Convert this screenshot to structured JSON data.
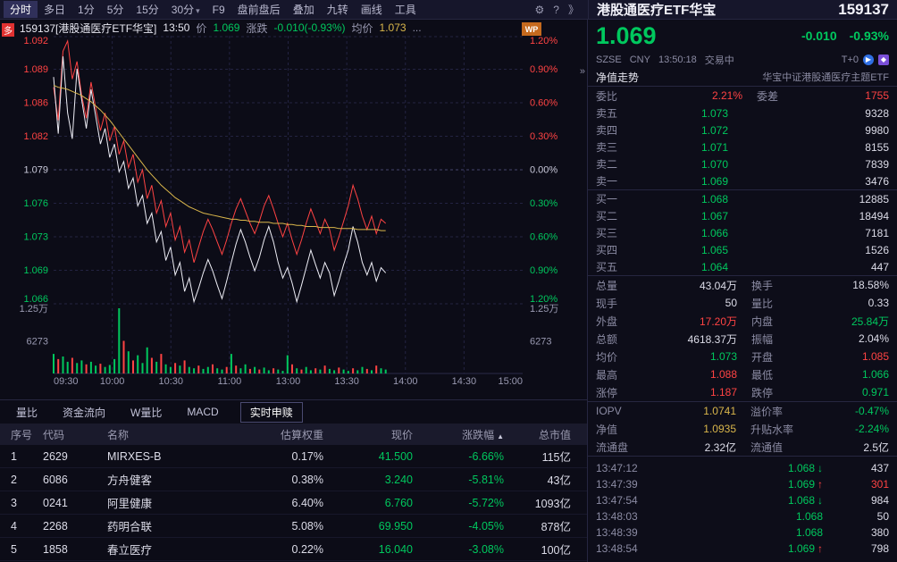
{
  "colors": {
    "red": "#ff4343",
    "green": "#00c85e",
    "yellow": "#d9b64b",
    "white": "#dcdce8",
    "gray": "#8b8ba3"
  },
  "toolbar": {
    "items": [
      {
        "label": "分时",
        "name": "minute",
        "active": true
      },
      {
        "label": "多日",
        "name": "multi-day"
      },
      {
        "label": "1分",
        "name": "1min"
      },
      {
        "label": "5分",
        "name": "5min"
      },
      {
        "label": "15分",
        "name": "15min"
      },
      {
        "label": "30分",
        "name": "30min",
        "caret": true
      },
      {
        "label": "F9",
        "name": "f9"
      },
      {
        "label": "盘前盘后",
        "name": "pre-post-market"
      },
      {
        "label": "叠加",
        "name": "overlay"
      },
      {
        "label": "九转",
        "name": "nine-turn"
      },
      {
        "label": "画线",
        "name": "draw-line"
      },
      {
        "label": "工具",
        "name": "tools"
      }
    ],
    "gear": "⚙",
    "help": "?",
    "more": "》",
    "duo_badge": "多"
  },
  "chart": {
    "header": {
      "code_name": "159137[港股通医疗ETF华宝]",
      "time": "13:50",
      "price_label": "价",
      "price": "1.069",
      "change_label": "涨跌",
      "change": "-0.010(-0.93%)",
      "avg_label": "均价",
      "avg": "1.073",
      "ellipsis": "...",
      "wp_badge": "WP",
      "collapse": "»"
    },
    "price_min": 1.066,
    "price_max": 1.092,
    "x_end": 0.708,
    "levels_left": [
      "1.092",
      "1.089",
      "1.086",
      "1.082",
      "1.079",
      "1.076",
      "1.073",
      "1.069",
      "1.066"
    ],
    "levels_right": [
      "1.20%",
      "0.90%",
      "0.60%",
      "0.30%",
      "0.00%",
      "0.30%",
      "0.60%",
      "0.90%",
      "1.20%"
    ],
    "vol_label_top": "1.25万",
    "vol_label_mid": "6273",
    "x_labels": [
      "09:30",
      "10:00",
      "10:30",
      "11:00",
      "13:00",
      "13:30",
      "14:00",
      "14:30",
      "15:00"
    ],
    "series": {
      "white": [
        1.088,
        1.0825,
        1.09,
        1.0845,
        1.082,
        1.0888,
        1.0858,
        1.083,
        1.0868,
        1.0842,
        1.0815,
        1.083,
        1.0802,
        1.0815,
        1.0788,
        1.0798,
        1.0772,
        1.0782,
        1.0755,
        1.0765,
        1.0738,
        1.0748,
        1.072,
        1.073,
        1.0702,
        1.0715,
        1.0688,
        1.07,
        1.0672,
        1.0685,
        1.0662,
        1.0675,
        1.069,
        1.0703,
        1.0692,
        1.0678,
        1.0665,
        1.0682,
        1.07,
        1.0718,
        1.0732,
        1.072,
        1.0705,
        1.0692,
        1.0705,
        1.0722,
        1.0735,
        1.072,
        1.07,
        1.0685,
        1.0695,
        1.068,
        1.0662,
        1.0678,
        1.0695,
        1.0712,
        1.0698,
        1.0685,
        1.07,
        1.069,
        1.0668,
        1.0682,
        1.0698,
        1.0712,
        1.0735,
        1.072,
        1.07,
        1.0688,
        1.07,
        1.0682,
        1.0695,
        1.069
      ],
      "red": [
        1.087,
        1.0838,
        1.0905,
        1.0915,
        1.0878,
        1.0895,
        1.0862,
        1.084,
        1.0875,
        1.085,
        1.0828,
        1.0845,
        1.0818,
        1.0832,
        1.0805,
        1.0818,
        1.0792,
        1.0805,
        1.0778,
        1.079,
        1.0762,
        1.0775,
        1.0748,
        1.076,
        1.0735,
        1.0748,
        1.0722,
        1.0735,
        1.071,
        1.0722,
        1.07,
        1.0715,
        1.073,
        1.0742,
        1.0732,
        1.072,
        1.0708,
        1.0722,
        1.0738,
        1.0752,
        1.0762,
        1.075,
        1.0738,
        1.0728,
        1.074,
        1.0755,
        1.0765,
        1.0752,
        1.0738,
        1.0725,
        1.0738,
        1.0722,
        1.0708,
        1.0722,
        1.0738,
        1.0752,
        1.074,
        1.0728,
        1.0742,
        1.0732,
        1.0712,
        1.0725,
        1.074,
        1.0755,
        1.0775,
        1.0762,
        1.0745,
        1.0732,
        1.0745,
        1.0728,
        1.0742,
        1.0738
      ],
      "avg": [
        1.0872,
        1.087,
        1.0869,
        1.0868,
        1.0866,
        1.0864,
        1.0862,
        1.0859,
        1.0856,
        1.0852,
        1.0848,
        1.0843,
        1.0838,
        1.0832,
        1.0826,
        1.082,
        1.0814,
        1.0808,
        1.0802,
        1.0796,
        1.079,
        1.0785,
        1.078,
        1.0775,
        1.0771,
        1.0767,
        1.0763,
        1.076,
        1.0757,
        1.0754,
        1.0752,
        1.075,
        1.0748,
        1.0747,
        1.0746,
        1.0745,
        1.0744,
        1.0743,
        1.0742,
        1.0742,
        1.0741,
        1.0741,
        1.074,
        1.074,
        1.0739,
        1.0739,
        1.0739,
        1.0738,
        1.0738,
        1.0738,
        1.0737,
        1.0737,
        1.0736,
        1.0736,
        1.0735,
        1.0735,
        1.0735,
        1.0734,
        1.0734,
        1.0734,
        1.0734,
        1.0733,
        1.0733,
        1.0733,
        1.0733,
        1.0732,
        1.0732,
        1.0732,
        1.0732,
        1.0732,
        1.0731,
        1.0731
      ]
    },
    "volume": {
      "heights": [
        0.3,
        0.22,
        0.26,
        0.18,
        0.24,
        0.16,
        0.2,
        0.14,
        0.18,
        0.12,
        0.15,
        0.1,
        0.13,
        0.22,
        1.0,
        0.5,
        0.34,
        0.2,
        0.28,
        0.16,
        0.4,
        0.24,
        0.18,
        0.3,
        0.14,
        0.1,
        0.16,
        0.12,
        0.2,
        0.1,
        0.08,
        0.12,
        0.07,
        0.1,
        0.14,
        0.08,
        0.06,
        0.1,
        0.3,
        0.12,
        0.08,
        0.14,
        0.07,
        0.1,
        0.06,
        0.09,
        0.05,
        0.08,
        0.06,
        0.04,
        0.28,
        0.14,
        0.08,
        0.06,
        0.1,
        0.05,
        0.08,
        0.06,
        0.12,
        0.07,
        0.05,
        0.09,
        0.06,
        0.04,
        0.08,
        0.05,
        0.1,
        0.07,
        0.05,
        0.12,
        0.08,
        0.06
      ],
      "colors": "grggrggrggrggggrgrgggrgrggrgrggrggrggrgrggrgrggrgggrgrggrgrggrggrggrgrgg"
    }
  },
  "panel": {
    "name": "港股通医疗ETF华宝",
    "code": "159137",
    "price": "1.069",
    "change": "-0.010",
    "change_pct": "-0.93%",
    "exchange": "SZSE",
    "currency": "CNY",
    "time": "13:50:18",
    "status": "交易中",
    "t0": "T+0",
    "nav_left": "净值走势",
    "nav_right": "华宝中证港股通医疗主题ETF",
    "weibi_label": "委比",
    "weibi": "2.21%",
    "weicha_label": "委差",
    "weicha": "1755",
    "asks": [
      {
        "label": "卖五",
        "price": "1.073",
        "vol": "9328"
      },
      {
        "label": "卖四",
        "price": "1.072",
        "vol": "9980"
      },
      {
        "label": "卖三",
        "price": "1.071",
        "vol": "8155"
      },
      {
        "label": "卖二",
        "price": "1.070",
        "vol": "7839"
      },
      {
        "label": "卖一",
        "price": "1.069",
        "vol": "3476"
      }
    ],
    "bids": [
      {
        "label": "买一",
        "price": "1.068",
        "vol": "12885"
      },
      {
        "label": "买二",
        "price": "1.067",
        "vol": "18494"
      },
      {
        "label": "买三",
        "price": "1.066",
        "vol": "7181"
      },
      {
        "label": "买四",
        "price": "1.065",
        "vol": "1526"
      },
      {
        "label": "买五",
        "price": "1.064",
        "vol": "447"
      }
    ],
    "stats": [
      {
        "l1": "总量",
        "v1": "43.04万",
        "c1": "w",
        "l2": "换手",
        "v2": "18.58%",
        "c2": "w"
      },
      {
        "l1": "现手",
        "v1": "50",
        "c1": "w",
        "l2": "量比",
        "v2": "0.33",
        "c2": "w"
      },
      {
        "l1": "外盘",
        "v1": "17.20万",
        "c1": "r",
        "l2": "内盘",
        "v2": "25.84万",
        "c2": "g"
      },
      {
        "l1": "总额",
        "v1": "4618.37万",
        "c1": "w",
        "l2": "振幅",
        "v2": "2.04%",
        "c2": "w"
      },
      {
        "l1": "均价",
        "v1": "1.073",
        "c1": "g",
        "l2": "开盘",
        "v2": "1.085",
        "c2": "r"
      },
      {
        "l1": "最高",
        "v1": "1.088",
        "c1": "r",
        "l2": "最低",
        "v2": "1.066",
        "c2": "g"
      },
      {
        "l1": "涨停",
        "v1": "1.187",
        "c1": "r",
        "l2": "跌停",
        "v2": "0.971",
        "c2": "g"
      }
    ],
    "iopv": [
      {
        "l1": "IOPV",
        "v1": "1.0741",
        "c1": "y",
        "l2": "溢价率",
        "v2": "-0.47%",
        "c2": "g"
      },
      {
        "l1": "净值",
        "v1": "1.0935",
        "c1": "y",
        "l2": "升贴水率",
        "v2": "-2.24%",
        "c2": "g"
      },
      {
        "l1": "流通盘",
        "v1": "2.32亿",
        "c1": "w",
        "l2": "流通值",
        "v2": "2.5亿",
        "c2": "w"
      }
    ],
    "ticks": [
      {
        "time": "13:47:12",
        "price": "1.068",
        "dir": "down",
        "vol": "437",
        "vc": "w"
      },
      {
        "time": "13:47:39",
        "price": "1.069",
        "dir": "up",
        "vol": "301",
        "vc": "r"
      },
      {
        "time": "13:47:54",
        "price": "1.068",
        "dir": "down",
        "vol": "984",
        "vc": "w"
      },
      {
        "time": "13:48:03",
        "price": "1.068",
        "dir": "none",
        "vol": "50",
        "vc": "w"
      },
      {
        "time": "13:48:39",
        "price": "1.068",
        "dir": "none",
        "vol": "380",
        "vc": "w"
      },
      {
        "time": "13:48:54",
        "price": "1.069",
        "dir": "up",
        "vol": "798",
        "vc": "w"
      }
    ]
  },
  "tabs": [
    {
      "label": "量比",
      "name": "volume-ratio"
    },
    {
      "label": "资金流向",
      "name": "fund-flow"
    },
    {
      "label": "W量比",
      "name": "w-volume-ratio"
    },
    {
      "label": "MACD",
      "name": "macd"
    },
    {
      "label": "实时申赎",
      "name": "realtime-creation",
      "active": true
    }
  ],
  "table": {
    "headers": [
      "序号",
      "代码",
      "名称",
      "估算权重",
      "现价",
      "涨跌幅",
      "总市值"
    ],
    "sort_icon": "▲",
    "sort_col": 5,
    "rows": [
      [
        "1",
        "2629",
        "MIRXES-B",
        "0.17%",
        "41.500",
        "-6.66%",
        "115亿"
      ],
      [
        "2",
        "6086",
        "方舟健客",
        "0.38%",
        "3.240",
        "-5.81%",
        "43亿"
      ],
      [
        "3",
        "0241",
        "阿里健康",
        "6.40%",
        "6.760",
        "-5.72%",
        "1093亿"
      ],
      [
        "4",
        "2268",
        "药明合联",
        "5.08%",
        "69.950",
        "-4.05%",
        "878亿"
      ],
      [
        "5",
        "1858",
        "春立医疗",
        "0.22%",
        "16.040",
        "-3.08%",
        "100亿"
      ]
    ]
  }
}
